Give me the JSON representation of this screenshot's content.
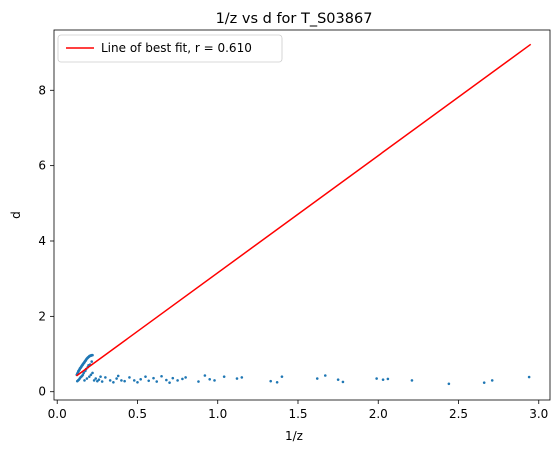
{
  "chart_data": {
    "type": "scatter",
    "title": "1/z vs d for T_S03867",
    "xlabel": "1/z",
    "ylabel": "d",
    "xlim": [
      -0.02,
      3.07
    ],
    "ylim": [
      -0.22,
      9.6
    ],
    "xticks": [
      0.0,
      0.5,
      1.0,
      1.5,
      2.0,
      2.5,
      3.0
    ],
    "xtick_labels": [
      "0.0",
      "0.5",
      "1.0",
      "1.5",
      "2.0",
      "2.5",
      "3.0"
    ],
    "yticks": [
      0,
      2,
      4,
      6,
      8
    ],
    "ytick_labels": [
      "0",
      "2",
      "4",
      "6",
      "8"
    ],
    "grid": false,
    "legend": {
      "position": "top-left",
      "entries": [
        "Line of best fit, r = 0.610"
      ]
    },
    "colors": {
      "points": "#1f77b4",
      "fit_line": "#ff0000"
    },
    "fit_line": {
      "name": "Line of best fit, r = 0.610",
      "x": [
        0.12,
        2.95
      ],
      "y": [
        0.42,
        9.22
      ]
    },
    "scatter_points": {
      "x": [
        0.122,
        0.125,
        0.128,
        0.13,
        0.132,
        0.135,
        0.138,
        0.14,
        0.142,
        0.145,
        0.148,
        0.15,
        0.152,
        0.155,
        0.158,
        0.16,
        0.162,
        0.165,
        0.168,
        0.17,
        0.172,
        0.175,
        0.178,
        0.18,
        0.182,
        0.185,
        0.188,
        0.19,
        0.192,
        0.195,
        0.198,
        0.2,
        0.202,
        0.205,
        0.208,
        0.21,
        0.212,
        0.215,
        0.218,
        0.22,
        0.125,
        0.13,
        0.135,
        0.14,
        0.145,
        0.15,
        0.155,
        0.16,
        0.165,
        0.17,
        0.175,
        0.18,
        0.185,
        0.19,
        0.195,
        0.2,
        0.205,
        0.21,
        0.215,
        0.22,
        0.23,
        0.24,
        0.25,
        0.26,
        0.27,
        0.28,
        0.3,
        0.33,
        0.35,
        0.37,
        0.38,
        0.4,
        0.42,
        0.45,
        0.48,
        0.5,
        0.52,
        0.55,
        0.57,
        0.6,
        0.62,
        0.65,
        0.68,
        0.7,
        0.72,
        0.75,
        0.78,
        0.8,
        0.88,
        0.92,
        0.95,
        0.98,
        1.04,
        1.12,
        1.15,
        1.33,
        1.37,
        1.4,
        1.62,
        1.67,
        1.75,
        1.78,
        1.99,
        2.03,
        2.06,
        2.21,
        2.44,
        2.66,
        2.71,
        2.94
      ],
      "y": [
        0.45,
        0.48,
        0.5,
        0.52,
        0.55,
        0.56,
        0.58,
        0.6,
        0.62,
        0.63,
        0.65,
        0.66,
        0.68,
        0.7,
        0.71,
        0.73,
        0.74,
        0.76,
        0.77,
        0.79,
        0.8,
        0.82,
        0.83,
        0.85,
        0.86,
        0.88,
        0.89,
        0.9,
        0.91,
        0.92,
        0.93,
        0.94,
        0.95,
        0.95,
        0.96,
        0.96,
        0.96,
        0.97,
        0.97,
        0.97,
        0.28,
        0.3,
        0.32,
        0.35,
        0.38,
        0.4,
        0.42,
        0.45,
        0.5,
        0.3,
        0.55,
        0.6,
        0.35,
        0.65,
        0.7,
        0.4,
        0.72,
        0.45,
        0.8,
        0.5,
        0.3,
        0.35,
        0.28,
        0.32,
        0.4,
        0.27,
        0.38,
        0.3,
        0.25,
        0.35,
        0.42,
        0.3,
        0.28,
        0.38,
        0.3,
        0.25,
        0.33,
        0.4,
        0.29,
        0.36,
        0.27,
        0.41,
        0.31,
        0.24,
        0.36,
        0.3,
        0.34,
        0.38,
        0.27,
        0.43,
        0.33,
        0.3,
        0.4,
        0.35,
        0.38,
        0.28,
        0.25,
        0.4,
        0.35,
        0.43,
        0.32,
        0.26,
        0.35,
        0.32,
        0.34,
        0.3,
        0.21,
        0.24,
        0.3,
        0.39
      ]
    }
  }
}
